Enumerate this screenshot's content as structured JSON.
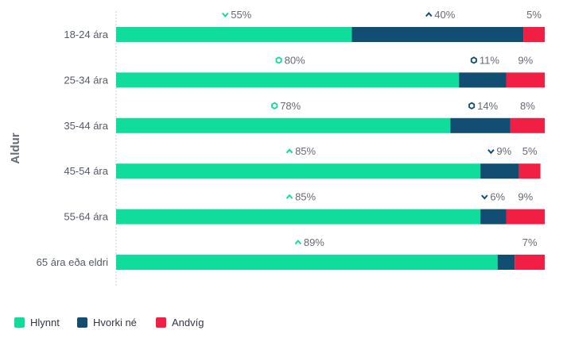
{
  "chart_data": {
    "type": "bar",
    "orientation": "horizontal",
    "stacked": true,
    "ylabel": "Aldur",
    "categories": [
      "18-24 ára",
      "25-34 ára",
      "35-44 ára",
      "45-54 ára",
      "55-64 ára",
      "65 ára eða eldri"
    ],
    "xlim": [
      0,
      100
    ],
    "series": [
      {
        "name": "Hlynnt",
        "color": "#10dc9c",
        "values": [
          55,
          80,
          78,
          85,
          85,
          89
        ],
        "labels": [
          "55%",
          "80%",
          "78%",
          "85%",
          "85%",
          "89%"
        ],
        "markers": [
          "chevron-down-icon",
          "hexagon-icon",
          "hexagon-icon",
          "chevron-up-icon",
          "chevron-up-icon",
          "chevron-up-icon"
        ]
      },
      {
        "name": "Hvorki né",
        "color": "#124d72",
        "values": [
          40,
          11,
          14,
          9,
          6,
          4
        ],
        "labels": [
          "40%",
          "11%",
          "14%",
          "9%",
          "6%",
          ""
        ],
        "markers": [
          "chevron-up-icon",
          "hexagon-icon",
          "hexagon-icon",
          "chevron-down-icon",
          "chevron-down-icon",
          ""
        ]
      },
      {
        "name": "Andvíg",
        "color": "#f21f44",
        "values": [
          5,
          9,
          8,
          5,
          9,
          7
        ],
        "labels": [
          "5%",
          "9%",
          "8%",
          "5%",
          "9%",
          "7%"
        ],
        "markers": [
          "",
          "",
          "",
          "",
          "",
          ""
        ]
      }
    ],
    "legend_position": "bottom-left",
    "grid": false
  }
}
